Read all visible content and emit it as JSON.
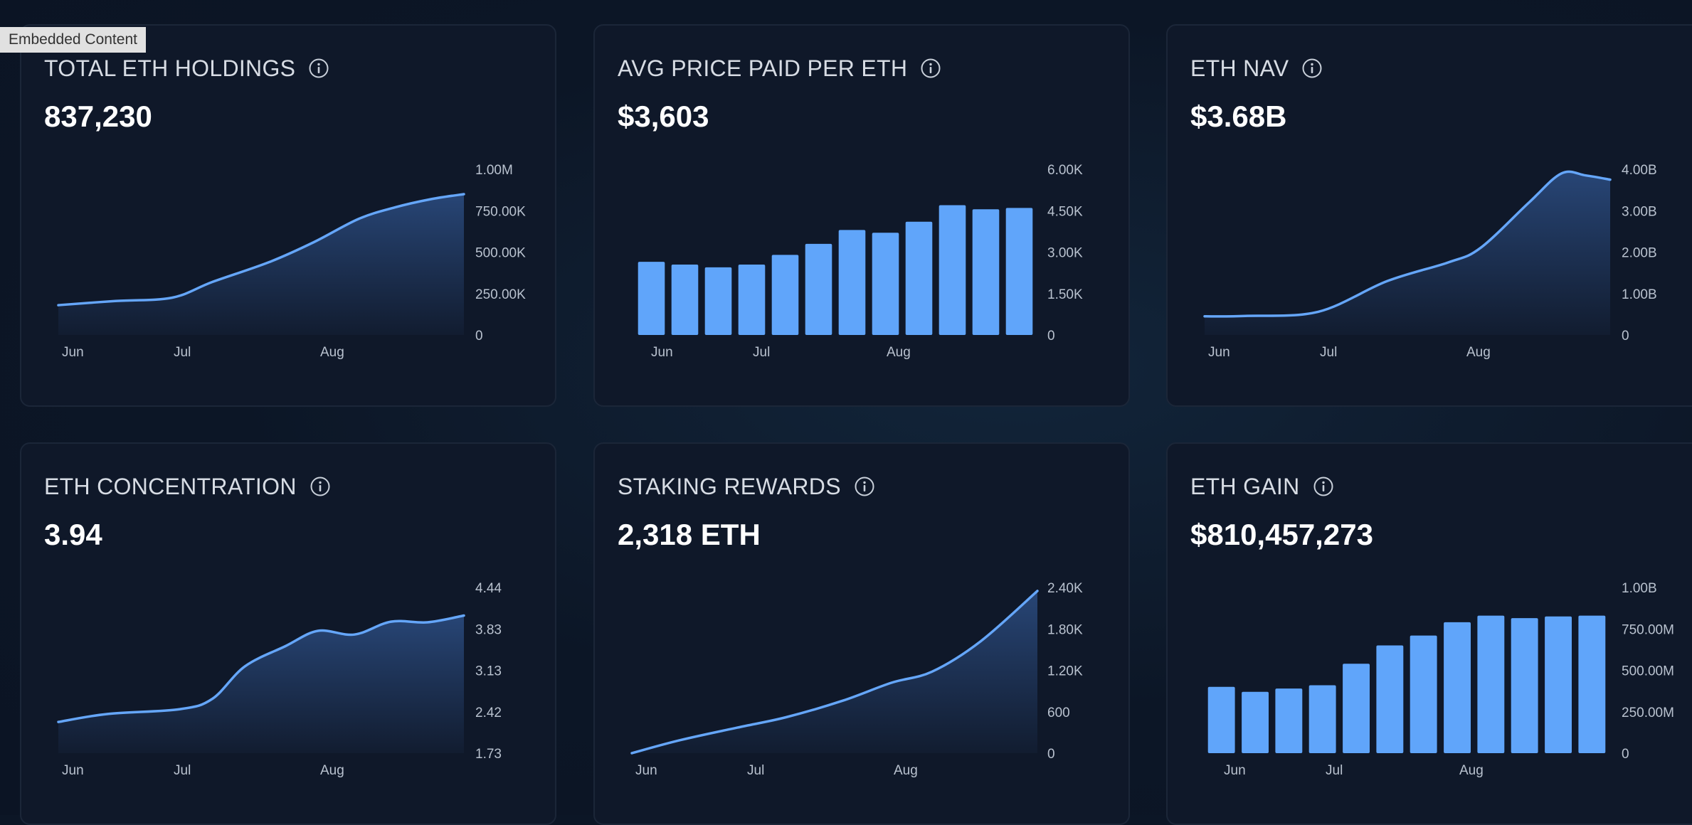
{
  "embed_label": "Embedded Content",
  "cards": [
    {
      "title": "TOTAL ETH HOLDINGS",
      "value": "837,230",
      "chart_data": {
        "type": "area",
        "title": "TOTAL ETH HOLDINGS",
        "x_tick_labels": [
          "Jun",
          "Jul",
          "Aug"
        ],
        "y_tick_labels": [
          "0",
          "250.00K",
          "500.00K",
          "750.00K",
          "1.00M"
        ],
        "ylim": [
          0,
          1000000
        ],
        "x": [
          0,
          0.14,
          0.28,
          0.38,
          0.52,
          0.63,
          0.74,
          0.83,
          0.92,
          1.0
        ],
        "values": [
          180000,
          205000,
          225000,
          320000,
          440000,
          560000,
          700000,
          770000,
          820000,
          850000
        ]
      }
    },
    {
      "title": "AVG PRICE PAID PER ETH",
      "value": "$3,603",
      "chart_data": {
        "type": "bar",
        "title": "AVG PRICE PAID PER ETH",
        "x_tick_labels": [
          "Jun",
          "Jul",
          "Aug"
        ],
        "y_tick_labels": [
          "0",
          "1.50K",
          "3.00K",
          "4.50K",
          "6.00K"
        ],
        "ylim": [
          0,
          6000
        ],
        "values": [
          2650,
          2550,
          2450,
          2550,
          2900,
          3300,
          3800,
          3700,
          4100,
          4700,
          4550,
          4600
        ]
      }
    },
    {
      "title": "ETH NAV",
      "value": "$3.68B",
      "chart_data": {
        "type": "area",
        "title": "ETH NAV",
        "x_tick_labels": [
          "Jun",
          "Jul",
          "Aug"
        ],
        "y_tick_labels": [
          "0",
          "1.00B",
          "2.00B",
          "3.00B",
          "4.00B"
        ],
        "ylim": [
          0,
          4000000000
        ],
        "x": [
          0,
          0.1,
          0.28,
          0.45,
          0.6,
          0.68,
          0.8,
          0.88,
          0.94,
          1.0
        ],
        "values": [
          450000000,
          460000000,
          560000000,
          1300000000,
          1750000000,
          2100000000,
          3200000000,
          3900000000,
          3850000000,
          3750000000
        ]
      }
    },
    {
      "title": "ETH CONCENTRATION",
      "value": "3.94",
      "chart_data": {
        "type": "area",
        "title": "ETH CONCENTRATION",
        "x_tick_labels": [
          "Jun",
          "Jul",
          "Aug"
        ],
        "y_tick_labels": [
          "1.73",
          "2.42",
          "3.13",
          "3.83",
          "4.44"
        ],
        "ylim": [
          1.73,
          4.44
        ],
        "x": [
          0,
          0.12,
          0.3,
          0.38,
          0.46,
          0.56,
          0.64,
          0.73,
          0.82,
          0.91,
          1.0
        ],
        "values": [
          2.24,
          2.37,
          2.45,
          2.62,
          3.15,
          3.48,
          3.73,
          3.67,
          3.88,
          3.87,
          3.98
        ]
      }
    },
    {
      "title": "STAKING REWARDS",
      "value": "2,318 ETH",
      "chart_data": {
        "type": "area",
        "title": "STAKING REWARDS",
        "x_tick_labels": [
          "Jun",
          "Jul",
          "Aug"
        ],
        "y_tick_labels": [
          "0",
          "600",
          "1.20K",
          "1.80K",
          "2.40K"
        ],
        "ylim": [
          0,
          2400
        ],
        "x": [
          0,
          0.12,
          0.26,
          0.38,
          0.52,
          0.64,
          0.74,
          0.86,
          1.0
        ],
        "values": [
          0,
          190,
          370,
          520,
          760,
          1020,
          1180,
          1620,
          2350
        ]
      }
    },
    {
      "title": "ETH GAIN",
      "value": "$810,457,273",
      "chart_data": {
        "type": "bar",
        "title": "ETH GAIN",
        "x_tick_labels": [
          "Jun",
          "Jul",
          "Aug"
        ],
        "y_tick_labels": [
          "0",
          "250.00M",
          "500.00M",
          "750.00M",
          "1.00B"
        ],
        "ylim": [
          0,
          1000000000
        ],
        "values": [
          400000000,
          370000000,
          390000000,
          410000000,
          540000000,
          650000000,
          710000000,
          790000000,
          830000000,
          815000000,
          825000000,
          830000000
        ]
      }
    }
  ],
  "colors": {
    "line": "#65a6f9",
    "bar": "#60a5fa",
    "area_top": "#29487a",
    "area_bottom": "#121d31"
  }
}
